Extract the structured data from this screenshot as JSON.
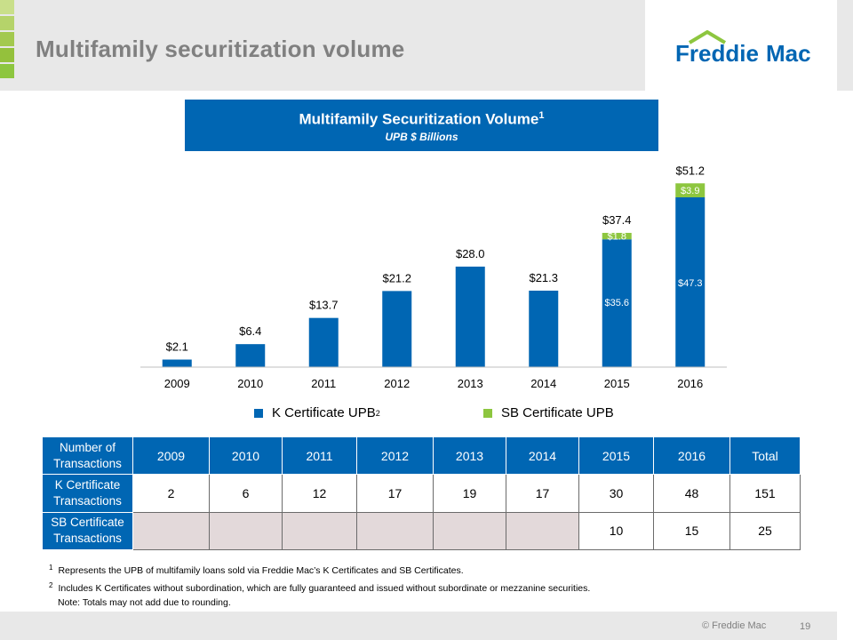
{
  "header": {
    "title": "Multifamily securitization volume"
  },
  "logo": {
    "text_left": "Freddie",
    "text_right": "Mac",
    "color": "#0066b3",
    "roof_color": "#8dc63f"
  },
  "chart_header": {
    "title": "Multifamily Securitization Volume",
    "title_sup": "1",
    "subtitle": "UPB $ Billions"
  },
  "colors": {
    "k_certificate": "#0066b3",
    "sb_certificate": "#8dc63f",
    "header_bg": "#e8e8e8",
    "title_gray": "#808080",
    "empty_cell": "#e3d9da"
  },
  "chart_data": {
    "type": "bar",
    "stacked": true,
    "categories": [
      "2009",
      "2010",
      "2011",
      "2012",
      "2013",
      "2014",
      "2015",
      "2016"
    ],
    "series": [
      {
        "name": "K Certificate UPB",
        "values": [
          2.1,
          6.4,
          13.7,
          21.2,
          28.0,
          21.3,
          35.6,
          47.3
        ],
        "color": "#0066b3"
      },
      {
        "name": "SB Certificate UPB",
        "values": [
          0,
          0,
          0,
          0,
          0,
          0,
          1.8,
          3.9
        ],
        "color": "#8dc63f"
      }
    ],
    "total_labels": [
      "$2.1",
      "$6.4",
      "$13.7",
      "$21.2",
      "$28.0",
      "$21.3",
      "$37.4",
      "$51.2"
    ],
    "k_inner_labels": [
      "",
      "",
      "",
      "",
      "",
      "",
      "$35.6",
      "$47.3"
    ],
    "sb_labels": [
      "",
      "",
      "",
      "",
      "",
      "",
      "$1.8",
      "$3.9"
    ],
    "ylim": [
      0,
      55
    ],
    "grid": false,
    "legend_position": "bottom"
  },
  "legend": {
    "k_label": "K Certificate UPB",
    "k_sup": "2",
    "sb_label": "SB Certificate UPB"
  },
  "table": {
    "header": [
      "Number of Transactions",
      "2009",
      "2010",
      "2011",
      "2012",
      "2013",
      "2014",
      "2015",
      "2016",
      "Total"
    ],
    "rows": [
      {
        "label": "K Certificate Transactions",
        "values": [
          "2",
          "6",
          "12",
          "17",
          "19",
          "17",
          "30",
          "48",
          "151"
        ]
      },
      {
        "label": "SB Certificate Transactions",
        "values": [
          "",
          "",
          "",
          "",
          "",
          "",
          "10",
          "15",
          "25"
        ]
      }
    ]
  },
  "footnotes": {
    "fn1_num": "1",
    "fn1": "Represents the UPB of multifamily loans sold via Freddie Mac’s K Certificates and SB Certificates.",
    "fn2_num": "2",
    "fn2": "Includes K Certificates without subordination, which are fully guaranteed and issued without subordinate or mezzanine securities.",
    "note": "Note:  Totals may not add due to rounding."
  },
  "footer": {
    "copyright": "© Freddie Mac",
    "page_number": "19"
  }
}
